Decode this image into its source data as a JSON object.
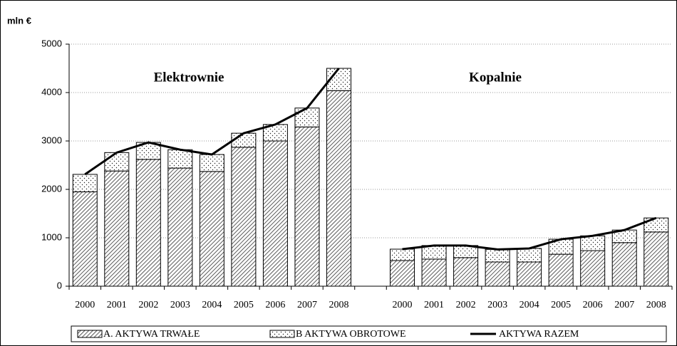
{
  "chart_data": {
    "type": "bar",
    "stacked": true,
    "y_label": "mln €",
    "annotations": [
      "Elektrownie",
      "Kopalnie"
    ],
    "categories": [
      "2000",
      "2001",
      "2002",
      "2003",
      "2004",
      "2005",
      "2006",
      "2007",
      "2008",
      null,
      "2000",
      "2001",
      "2002",
      "2003",
      "2004",
      "2005",
      "2006",
      "2007",
      "2008"
    ],
    "series": [
      {
        "name": "A. AKTYWA TRWAŁE",
        "type": "bar",
        "values": [
          1950,
          2380,
          2620,
          2440,
          2370,
          2870,
          3000,
          3290,
          4040,
          null,
          530,
          560,
          590,
          500,
          500,
          660,
          735,
          900,
          1120
        ]
      },
      {
        "name": "B AKTYWA OBROTOWE",
        "type": "bar",
        "values": [
          360,
          380,
          350,
          380,
          350,
          290,
          340,
          390,
          460,
          null,
          235,
          280,
          250,
          260,
          280,
          310,
          305,
          260,
          290
        ]
      },
      {
        "name": "AKTYWA RAZEM",
        "type": "line",
        "color": "#000000",
        "values": [
          2310,
          2760,
          2970,
          2820,
          2720,
          3160,
          3340,
          3680,
          4500,
          null,
          765,
          840,
          840,
          760,
          780,
          970,
          1040,
          1160,
          1410
        ]
      }
    ],
    "ylim": [
      0,
      5000
    ],
    "yticks": [
      0,
      1000,
      2000,
      3000,
      4000,
      5000
    ],
    "grid": true
  }
}
